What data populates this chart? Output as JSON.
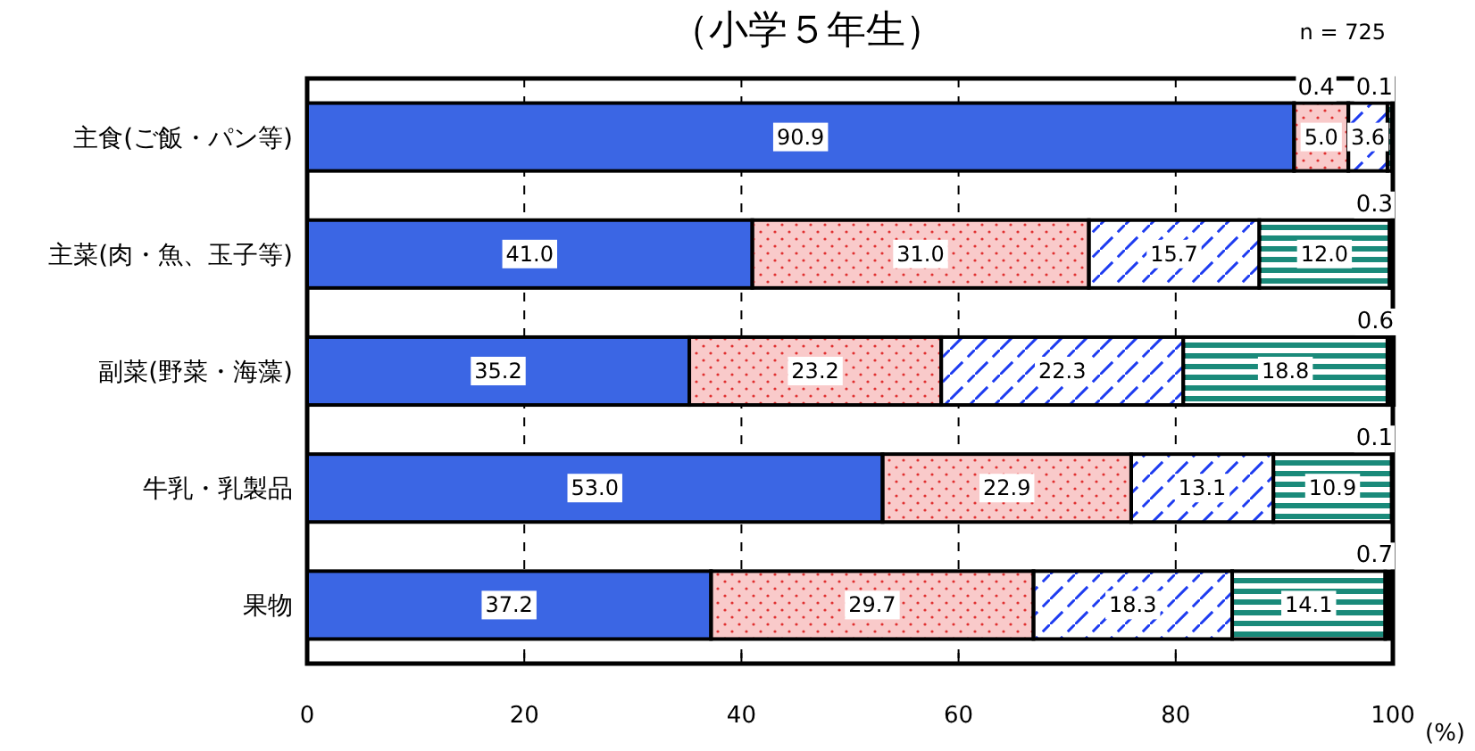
{
  "chart_data": {
    "type": "bar",
    "orientation": "horizontal",
    "stacked": true,
    "title": "（小学５年生）",
    "xlabel": "(%)",
    "annotations": [
      "n = 725"
    ],
    "categories": [
      "主食(ご飯・パン等)",
      "主菜(肉・魚、玉子等)",
      "副菜(野菜・海藻)",
      "牛乳・乳製品",
      "果物"
    ],
    "series": [
      {
        "color": "#3b66e4",
        "values": [
          90.9,
          41.0,
          35.2,
          53.0,
          37.2
        ],
        "value_labels": [
          "90.9",
          "41.0",
          "35.2",
          "53.0",
          "37.2"
        ]
      },
      {
        "color": "#f9caca",
        "values": [
          5.0,
          31.0,
          23.2,
          22.9,
          29.7
        ],
        "value_labels": [
          "5.0",
          "31.0",
          "23.2",
          "22.9",
          "29.7"
        ]
      },
      {
        "color": "#ffffff",
        "values": [
          3.6,
          15.7,
          22.3,
          13.1,
          18.3
        ],
        "value_labels": [
          "3.6",
          "15.7",
          "22.3",
          "13.1",
          "18.3"
        ]
      },
      {
        "color": "#1a8a7a",
        "values": [
          0.4,
          12.0,
          18.8,
          10.9,
          14.1
        ],
        "value_labels": [
          "0.4",
          "12.0",
          "18.8",
          "10.9",
          "14.1"
        ]
      },
      {
        "color": "#000000",
        "values": [
          0.1,
          0.3,
          0.6,
          0.1,
          0.7
        ],
        "value_labels": [
          "0.1",
          "0.3",
          "0.6",
          "0.1",
          "0.7"
        ]
      }
    ],
    "xlim": [
      0,
      100
    ],
    "xticks": [
      0,
      20,
      40,
      60,
      80,
      100
    ],
    "grid": "x"
  }
}
